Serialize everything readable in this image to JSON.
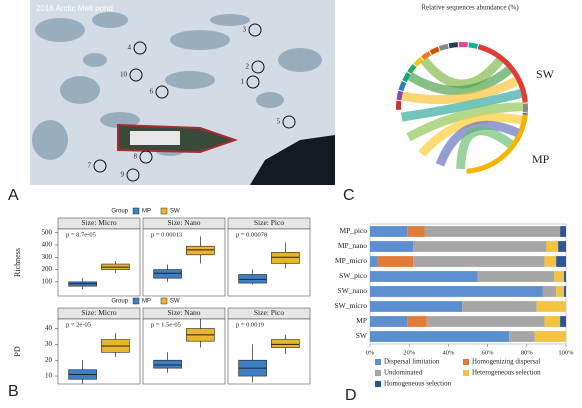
{
  "panels": {
    "a": "A",
    "b": "B",
    "c": "C",
    "d": "D"
  },
  "photo": {
    "caption": "2016 Arctic Melt pond",
    "sites": [
      "1",
      "2",
      "3",
      "4",
      "5",
      "6",
      "7",
      "8",
      "9",
      "10"
    ]
  },
  "chord": {
    "title": "Relative sequences abundance (%)",
    "groups": [
      "SW",
      "MP"
    ]
  },
  "chart_data": [
    {
      "type": "box",
      "ylabel": "Richness",
      "legend_title": "Group",
      "groups": [
        {
          "name": "MP",
          "color": "#3d7fc7"
        },
        {
          "name": "SW",
          "color": "#e9b52c"
        }
      ],
      "ylim": [
        -15,
        530
      ],
      "yticks": [
        100,
        200,
        300,
        400,
        500
      ],
      "facets": [
        {
          "title": "Size: Micro",
          "pvalue": "p = 8.7e-05",
          "boxes": [
            {
              "min": 40,
              "q1": 65,
              "median": 85,
              "q3": 100,
              "max": 130
            },
            {
              "min": 170,
              "q1": 200,
              "median": 220,
              "q3": 245,
              "max": 270
            }
          ]
        },
        {
          "title": "Size: Nano",
          "pvalue": "p = 0.00013",
          "boxes": [
            {
              "min": 100,
              "q1": 130,
              "median": 170,
              "q3": 200,
              "max": 240
            },
            {
              "min": 250,
              "q1": 320,
              "median": 360,
              "q3": 390,
              "max": 470
            }
          ]
        },
        {
          "title": "Size: Pico",
          "pvalue": "p = 0.00078",
          "boxes": [
            {
              "min": 80,
              "q1": 90,
              "median": 120,
              "q3": 160,
              "max": 200
            },
            {
              "min": 210,
              "q1": 250,
              "median": 300,
              "q3": 340,
              "max": 420
            }
          ]
        }
      ]
    },
    {
      "type": "box",
      "ylabel": "PD",
      "legend_title": "Group",
      "groups": [
        {
          "name": "MP",
          "color": "#3d7fc7"
        },
        {
          "name": "SW",
          "color": "#e9b52c"
        }
      ],
      "ylim": [
        5,
        46
      ],
      "yticks": [
        10,
        20,
        30,
        40
      ],
      "facets": [
        {
          "title": "Size: Micro",
          "pvalue": "p = 2e-05",
          "boxes": [
            {
              "min": 5,
              "q1": 8,
              "median": 11,
              "q3": 14,
              "max": 20
            },
            {
              "min": 22,
              "q1": 25,
              "median": 29,
              "q3": 33,
              "max": 37
            }
          ]
        },
        {
          "title": "Size: Nano",
          "pvalue": "p = 1.5e-05",
          "boxes": [
            {
              "min": 12,
              "q1": 15,
              "median": 17,
              "q3": 20,
              "max": 25
            },
            {
              "min": 28,
              "q1": 32,
              "median": 36,
              "q3": 40,
              "max": 46
            }
          ]
        },
        {
          "title": "Size: Pico",
          "pvalue": "p = 0.0019",
          "boxes": [
            {
              "min": 6,
              "q1": 10,
              "median": 15,
              "q3": 20,
              "max": 30
            },
            {
              "min": 24,
              "q1": 28,
              "median": 30,
              "q3": 33,
              "max": 36
            }
          ]
        }
      ]
    },
    {
      "type": "stacked-barh",
      "categories": [
        "MP_pico",
        "MP_nano",
        "MP_micro",
        "SW_pico",
        "SW_nano",
        "SW_micro",
        "MP",
        "SW"
      ],
      "series": [
        {
          "name": "Dispersal limitation",
          "color": "#5b8fd0",
          "values": [
            19,
            22,
            4,
            55,
            88,
            47,
            19,
            71
          ]
        },
        {
          "name": "Homogenizing dispersal",
          "color": "#e07b39",
          "values": [
            9,
            0,
            18,
            0,
            0,
            0,
            10,
            0
          ]
        },
        {
          "name": "Undominated",
          "color": "#a6a6a6",
          "values": [
            69,
            68,
            67,
            39,
            7,
            38,
            60,
            13
          ]
        },
        {
          "name": "Heterogeneous selection",
          "color": "#f5c242",
          "values": [
            0,
            6,
            6,
            5,
            4,
            15,
            8,
            16
          ]
        },
        {
          "name": "Homogeneous selection",
          "color": "#2e5597",
          "values": [
            3,
            4,
            5,
            1,
            1,
            0,
            3,
            0
          ]
        }
      ],
      "xlim": [
        0,
        100
      ],
      "xticks": [
        {
          "value": 0,
          "label": "0%"
        },
        {
          "value": 20,
          "label": "20%"
        },
        {
          "value": 40,
          "label": "40%"
        },
        {
          "value": 60,
          "label": "60%"
        },
        {
          "value": 80,
          "label": "80%"
        },
        {
          "value": 100,
          "label": "100%"
        }
      ]
    }
  ]
}
